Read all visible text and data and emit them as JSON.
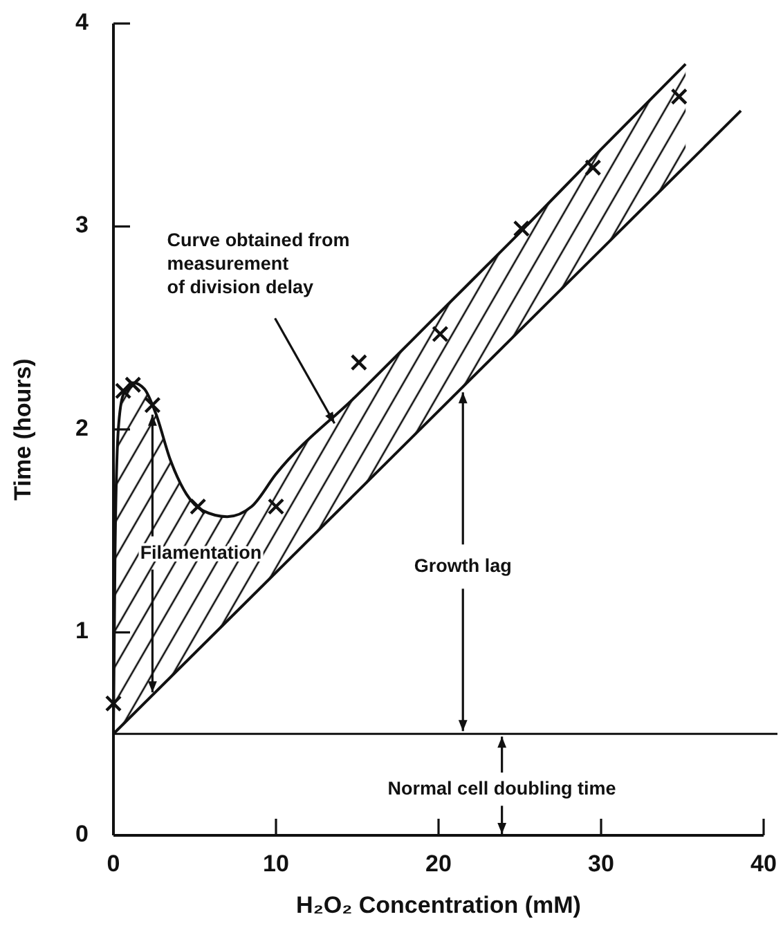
{
  "chart_data": {
    "type": "line",
    "xlabel": "H₂O₂ Concentration (mM)",
    "ylabel": "Time (hours)",
    "xlim": [
      0,
      40
    ],
    "ylim": [
      0,
      4
    ],
    "xticks": [
      0,
      10,
      20,
      30,
      40
    ],
    "yticks": [
      0,
      1,
      2,
      3,
      4
    ],
    "grid": false,
    "series": [
      {
        "type": "line",
        "color": "#111111",
        "line_style": "solid",
        "marker": "none",
        "x": [
          0,
          0.1,
          0.3,
          0.6,
          1.2,
          1.9,
          2.6,
          3.5,
          4.5,
          5.5,
          7,
          8.5,
          10,
          15,
          20,
          25,
          30,
          35.2
        ],
        "values": [
          0.5,
          1.4,
          2.0,
          2.17,
          2.23,
          2.2,
          2.08,
          1.85,
          1.68,
          1.6,
          1.57,
          1.62,
          1.78,
          2.17,
          2.57,
          2.97,
          3.38,
          3.8
        ],
        "lower": [
          0.5,
          0.51,
          0.52,
          0.55,
          0.6,
          0.65,
          0.71,
          0.78,
          0.86,
          0.94,
          1.06,
          1.18,
          1.3,
          1.69,
          2.09,
          2.49,
          2.89,
          3.3
        ],
        "upper": [
          0.5,
          1.4,
          2.0,
          2.17,
          2.23,
          2.2,
          2.08,
          1.85,
          1.68,
          1.6,
          1.57,
          1.62,
          1.78,
          2.17,
          2.57,
          2.97,
          3.38,
          3.8
        ]
      },
      {
        "type": "line",
        "color": "#111111",
        "line_style": "solid",
        "marker": "none",
        "x": [
          0,
          38.6
        ],
        "values": [
          0.5,
          3.57
        ]
      },
      {
        "type": "scatter",
        "color": "#111111",
        "marker": "cross",
        "x": [
          0,
          0.6,
          1.2,
          2.4,
          5.2,
          10,
          15.1,
          20.1,
          25.1,
          29.5,
          34.8
        ],
        "values": [
          0.65,
          2.19,
          2.22,
          2.12,
          1.62,
          1.62,
          2.33,
          2.47,
          2.99,
          3.29,
          3.64
        ]
      }
    ],
    "ref_lines": [
      {
        "axis": "y",
        "value": 0.5,
        "color": "#111111"
      }
    ],
    "annotations": [
      {
        "text": "Curve obtained from\nmeasurement\nof division delay",
        "x": 13.6,
        "y": 2.05
      },
      {
        "text": "Filamentation",
        "x": 2.4,
        "y": 2.1
      },
      {
        "text": "Growth lag",
        "x": 21.5,
        "y": 2.21
      },
      {
        "text": "Normal cell doubling time",
        "x": 23.9,
        "y": 0.5
      }
    ]
  }
}
